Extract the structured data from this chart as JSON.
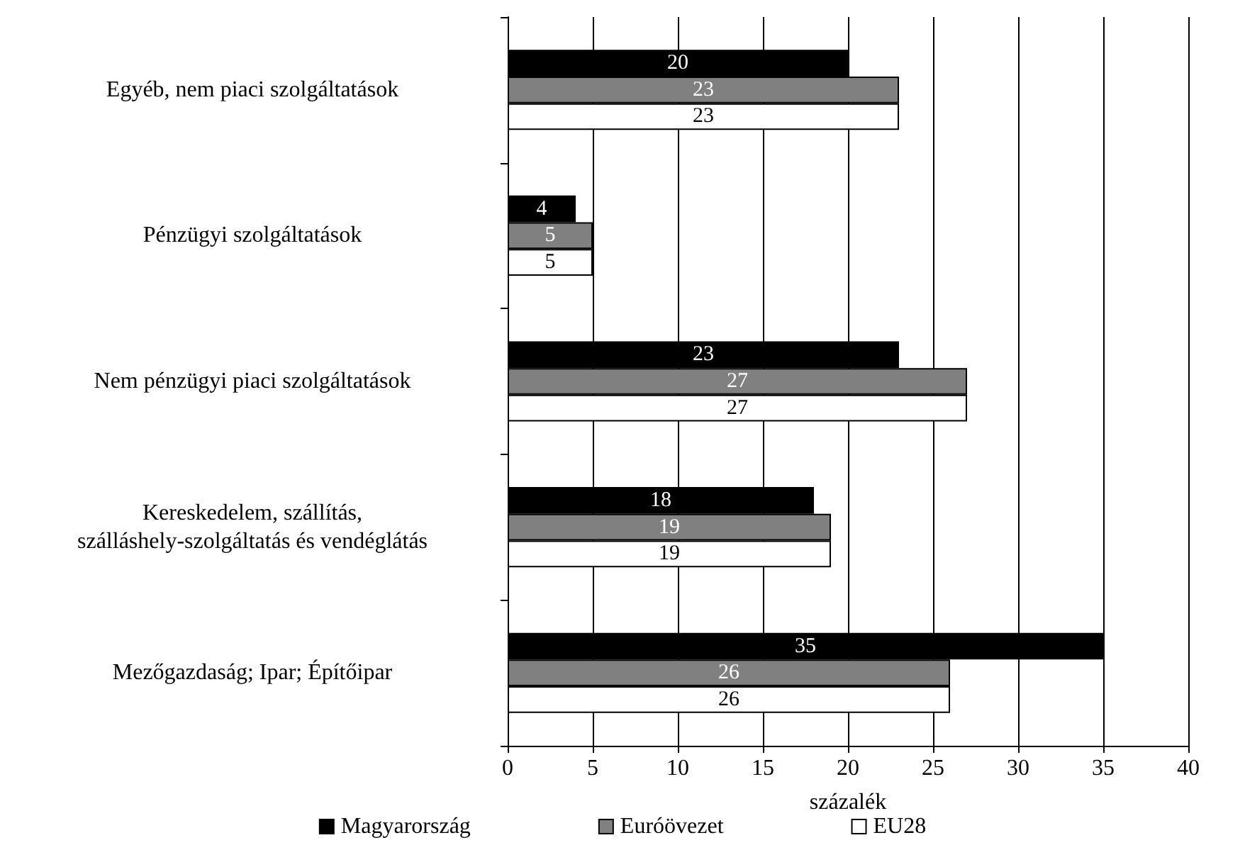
{
  "chart_data": {
    "type": "bar",
    "orientation": "horizontal",
    "xlabel": "százalék",
    "categories": [
      "Egyéb, nem piaci szolgáltatások",
      "Pénzügyi szolgáltatások",
      "Nem pénzügyi piaci szolgáltatások",
      "Kereskedelem, szállítás,\nszálláshely-szolgáltatás és vendéglátás",
      "Mezőgazdaság; Ipar; Építőipar"
    ],
    "series": [
      {
        "name": "Magyarország",
        "color": "#000000",
        "values": [
          20,
          4,
          23,
          18,
          35
        ]
      },
      {
        "name": "Euróövezet",
        "color": "#808080",
        "values": [
          23,
          5,
          27,
          19,
          26
        ]
      },
      {
        "name": "EU28",
        "color": "#ffffff",
        "values": [
          23,
          5,
          27,
          19,
          26
        ]
      }
    ],
    "xlim": [
      0,
      40
    ],
    "xticks": [
      0,
      5,
      10,
      15,
      20,
      25,
      30,
      35,
      40
    ],
    "grid": "x",
    "legend": "bottom",
    "data_labels": true
  }
}
